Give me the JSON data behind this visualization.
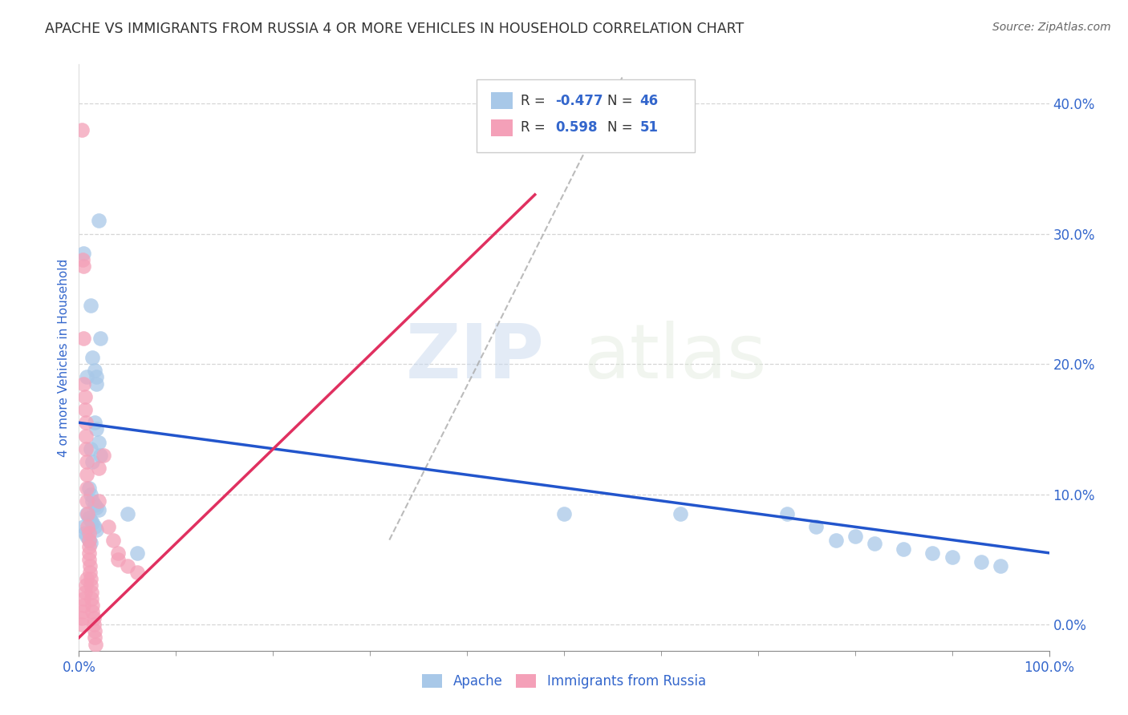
{
  "title": "APACHE VS IMMIGRANTS FROM RUSSIA 4 OR MORE VEHICLES IN HOUSEHOLD CORRELATION CHART",
  "source": "Source: ZipAtlas.com",
  "ylabel": "4 or more Vehicles in Household",
  "xlim": [
    0.0,
    1.0
  ],
  "ylim": [
    -0.02,
    0.43
  ],
  "yticks": [
    0.0,
    0.1,
    0.2,
    0.3,
    0.4
  ],
  "ytick_labels": [
    "0.0%",
    "10.0%",
    "20.0%",
    "30.0%",
    "40.0%"
  ],
  "xtick_labels_ends": [
    "0.0%",
    "100.0%"
  ],
  "apache_R": "-0.477",
  "apache_N": "46",
  "russia_R": "0.598",
  "russia_N": "51",
  "apache_color": "#a8c8e8",
  "russia_color": "#f4a0b8",
  "apache_line_color": "#2255cc",
  "russia_line_color": "#e03060",
  "apache_scatter": [
    [
      0.005,
      0.285
    ],
    [
      0.008,
      0.19
    ],
    [
      0.012,
      0.245
    ],
    [
      0.014,
      0.205
    ],
    [
      0.016,
      0.195
    ],
    [
      0.018,
      0.19
    ],
    [
      0.018,
      0.185
    ],
    [
      0.02,
      0.31
    ],
    [
      0.022,
      0.22
    ],
    [
      0.012,
      0.135
    ],
    [
      0.014,
      0.125
    ],
    [
      0.016,
      0.155
    ],
    [
      0.018,
      0.15
    ],
    [
      0.02,
      0.14
    ],
    [
      0.022,
      0.13
    ],
    [
      0.01,
      0.105
    ],
    [
      0.012,
      0.1
    ],
    [
      0.014,
      0.095
    ],
    [
      0.016,
      0.092
    ],
    [
      0.018,
      0.09
    ],
    [
      0.02,
      0.088
    ],
    [
      0.008,
      0.085
    ],
    [
      0.01,
      0.082
    ],
    [
      0.012,
      0.08
    ],
    [
      0.014,
      0.078
    ],
    [
      0.016,
      0.075
    ],
    [
      0.018,
      0.073
    ],
    [
      0.005,
      0.075
    ],
    [
      0.006,
      0.07
    ],
    [
      0.008,
      0.068
    ],
    [
      0.01,
      0.065
    ],
    [
      0.012,
      0.063
    ],
    [
      0.05,
      0.085
    ],
    [
      0.06,
      0.055
    ],
    [
      0.5,
      0.085
    ],
    [
      0.62,
      0.085
    ],
    [
      0.73,
      0.085
    ],
    [
      0.76,
      0.075
    ],
    [
      0.78,
      0.065
    ],
    [
      0.8,
      0.068
    ],
    [
      0.82,
      0.062
    ],
    [
      0.85,
      0.058
    ],
    [
      0.88,
      0.055
    ],
    [
      0.9,
      0.052
    ],
    [
      0.93,
      0.048
    ],
    [
      0.95,
      0.045
    ]
  ],
  "russia_scatter": [
    [
      0.003,
      0.38
    ],
    [
      0.004,
      0.28
    ],
    [
      0.005,
      0.275
    ],
    [
      0.005,
      0.22
    ],
    [
      0.005,
      0.185
    ],
    [
      0.006,
      0.175
    ],
    [
      0.006,
      0.165
    ],
    [
      0.007,
      0.155
    ],
    [
      0.007,
      0.145
    ],
    [
      0.007,
      0.135
    ],
    [
      0.008,
      0.125
    ],
    [
      0.008,
      0.115
    ],
    [
      0.008,
      0.105
    ],
    [
      0.008,
      0.095
    ],
    [
      0.009,
      0.085
    ],
    [
      0.009,
      0.075
    ],
    [
      0.01,
      0.07
    ],
    [
      0.01,
      0.065
    ],
    [
      0.01,
      0.06
    ],
    [
      0.01,
      0.055
    ],
    [
      0.01,
      0.05
    ],
    [
      0.011,
      0.045
    ],
    [
      0.011,
      0.04
    ],
    [
      0.012,
      0.035
    ],
    [
      0.012,
      0.03
    ],
    [
      0.013,
      0.025
    ],
    [
      0.013,
      0.02
    ],
    [
      0.014,
      0.015
    ],
    [
      0.014,
      0.01
    ],
    [
      0.015,
      0.005
    ],
    [
      0.015,
      0.0
    ],
    [
      0.016,
      -0.005
    ],
    [
      0.016,
      -0.01
    ],
    [
      0.017,
      -0.015
    ],
    [
      0.003,
      0.005
    ],
    [
      0.003,
      0.0
    ],
    [
      0.004,
      0.01
    ],
    [
      0.005,
      0.02
    ],
    [
      0.005,
      0.015
    ],
    [
      0.006,
      0.025
    ],
    [
      0.007,
      0.03
    ],
    [
      0.008,
      0.035
    ],
    [
      0.02,
      0.12
    ],
    [
      0.02,
      0.095
    ],
    [
      0.025,
      0.13
    ],
    [
      0.03,
      0.075
    ],
    [
      0.035,
      0.065
    ],
    [
      0.04,
      0.055
    ],
    [
      0.04,
      0.05
    ],
    [
      0.05,
      0.045
    ],
    [
      0.06,
      0.04
    ]
  ],
  "apache_trend": {
    "x_start": 0.0,
    "y_start": 0.155,
    "x_end": 1.0,
    "y_end": 0.055
  },
  "russia_trend": {
    "x_start": 0.0,
    "y_start": -0.01,
    "x_end": 0.47,
    "y_end": 0.33
  },
  "diag_line": {
    "x_start": 0.32,
    "y_start": 0.065,
    "x_end": 0.56,
    "y_end": 0.42
  },
  "watermark_zip": "ZIP",
  "watermark_atlas": "atlas",
  "background_color": "#ffffff",
  "grid_color": "#cccccc",
  "title_color": "#333333",
  "axis_label_color": "#3366cc",
  "tick_label_color": "#3366cc",
  "legend_color": "#3366cc"
}
